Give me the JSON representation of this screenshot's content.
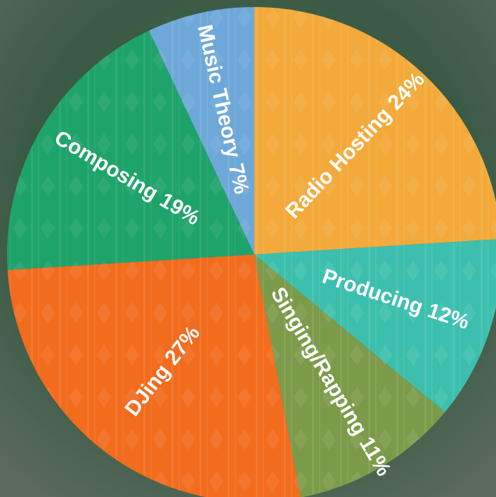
{
  "chart_data": {
    "type": "pie",
    "categories": [
      "Radio Hosting",
      "Producing",
      "Singing/Rapping",
      "DJing",
      "Composing",
      "Music Theory"
    ],
    "values": [
      24,
      12,
      11,
      27,
      19,
      7
    ],
    "value_labels": [
      "24%",
      "12%",
      "11%",
      "27%",
      "19%",
      "7%"
    ],
    "colors": [
      "#f3aa3a",
      "#3dbfae",
      "#7c9b4a",
      "#f26c1e",
      "#1ea36b",
      "#6ea8d8"
    ]
  }
}
